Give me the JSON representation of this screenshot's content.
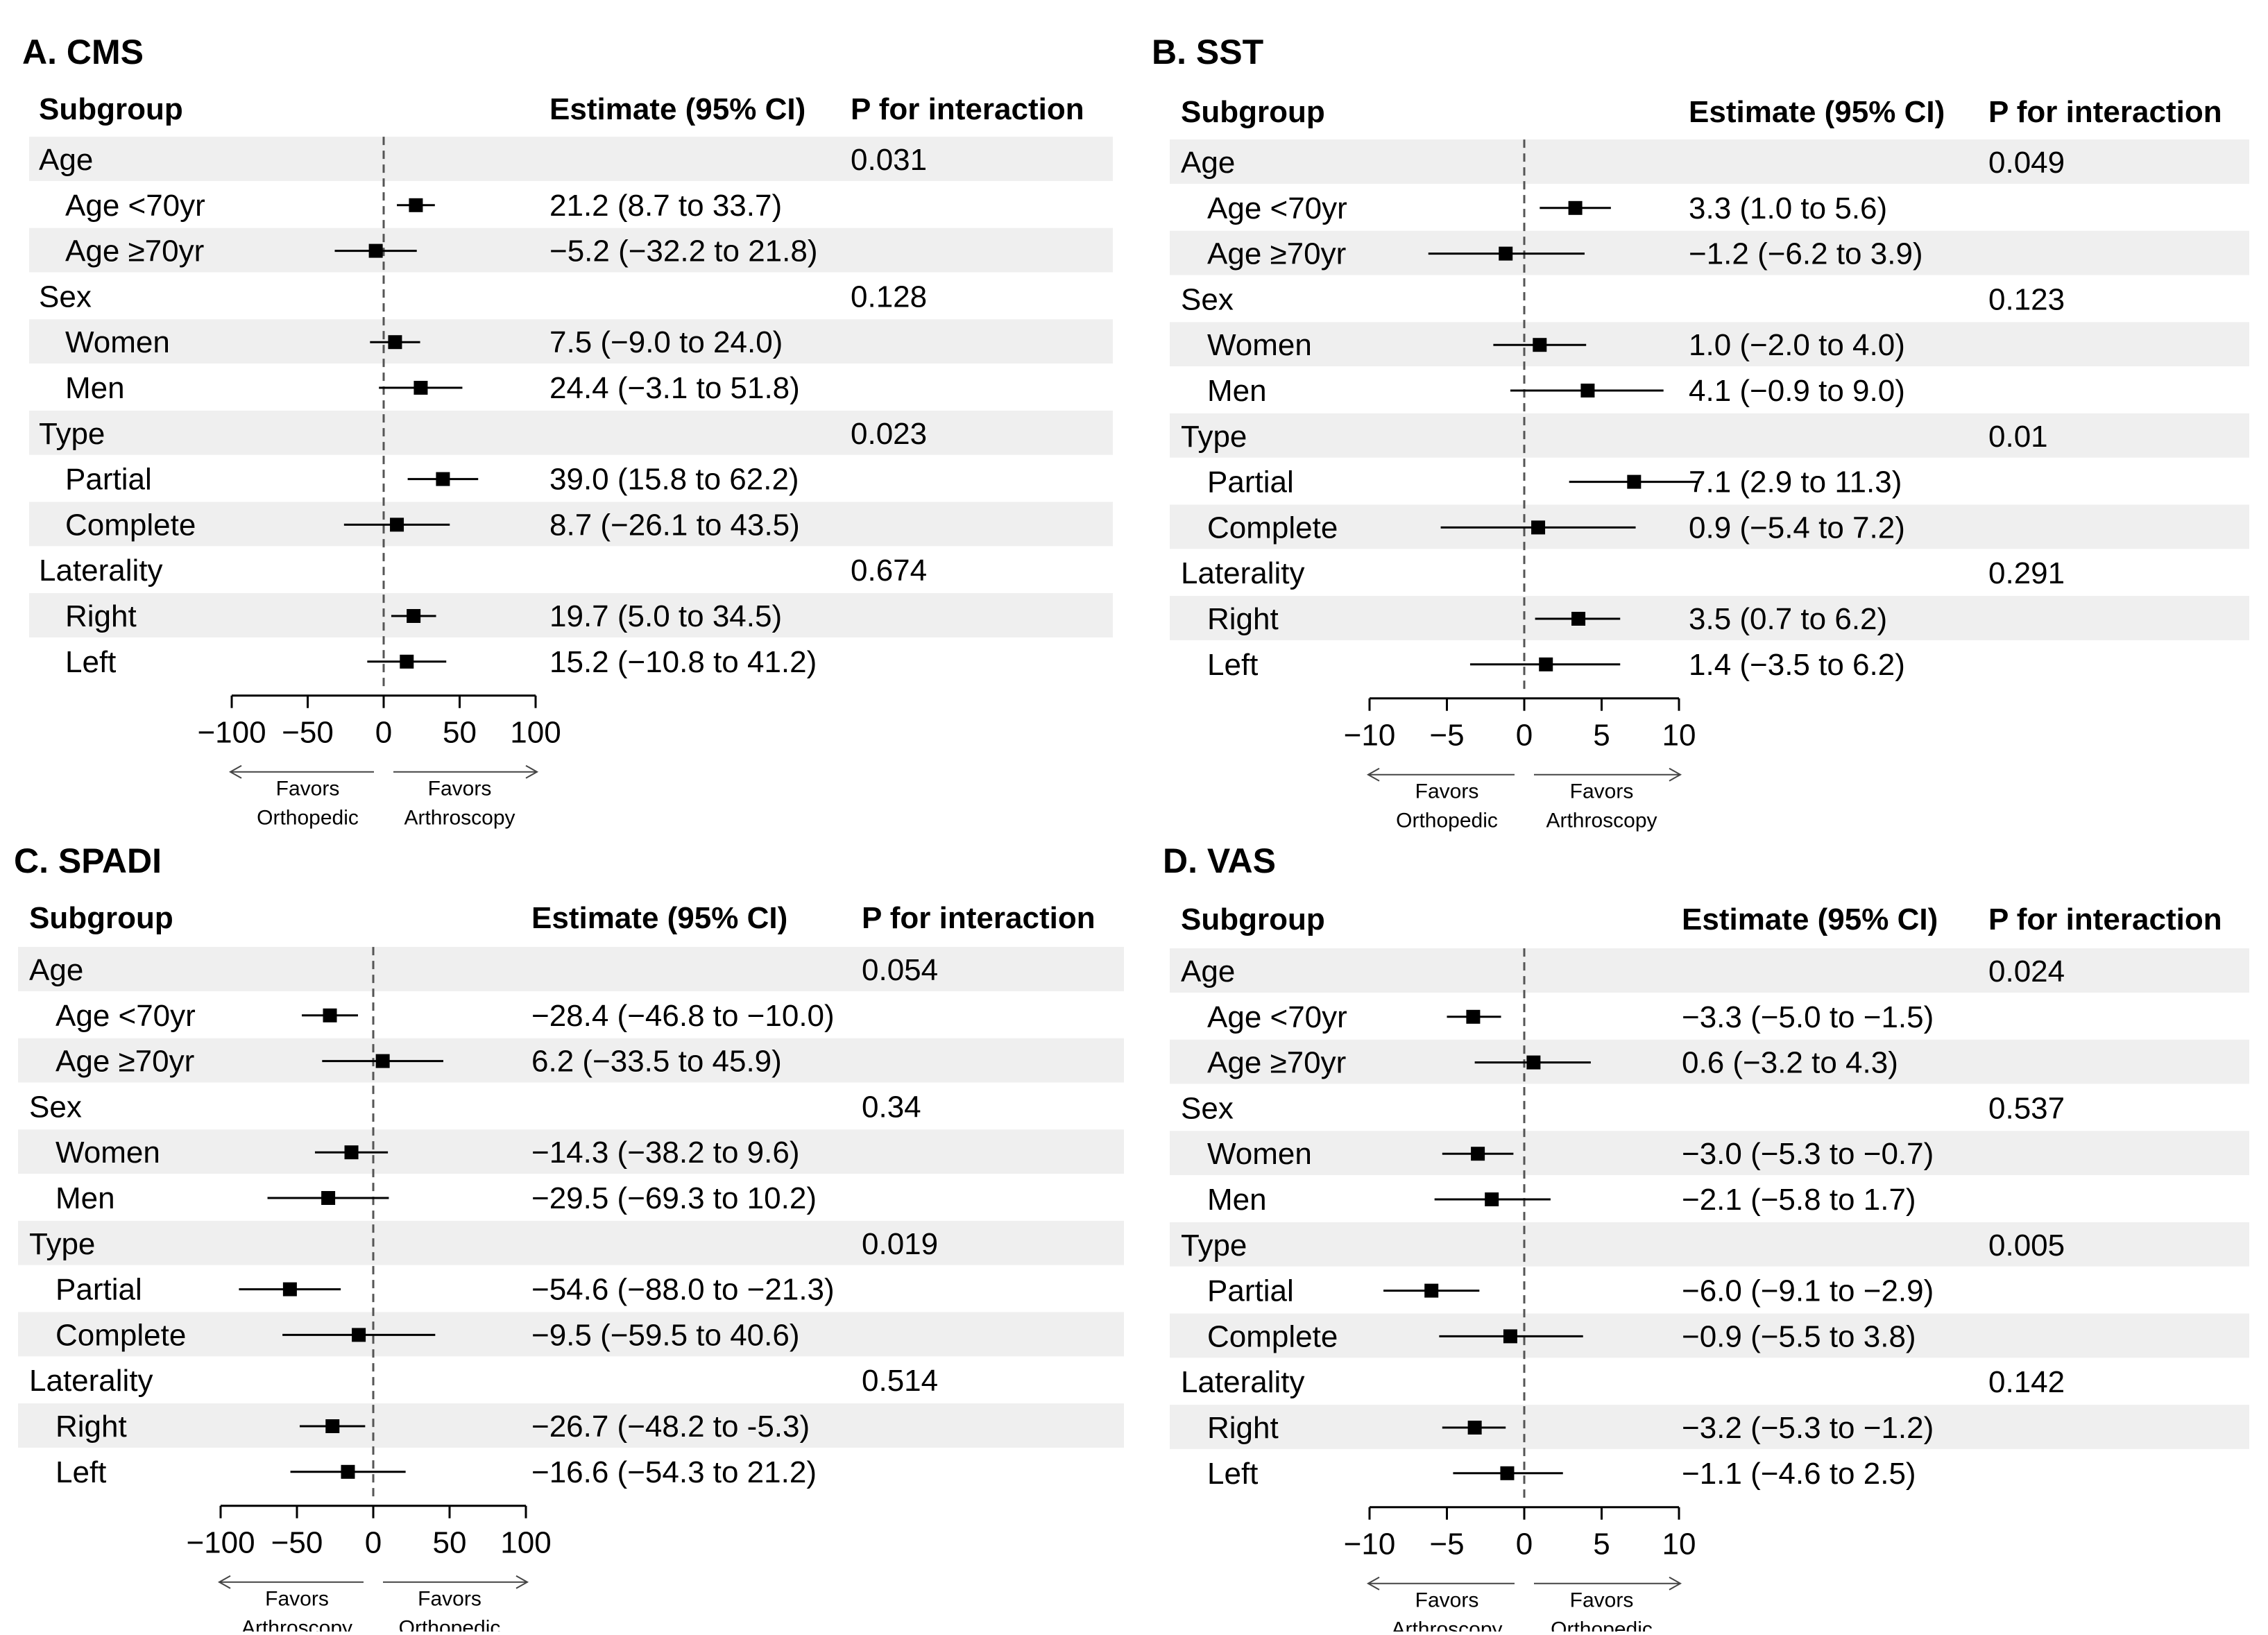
{
  "headers": {
    "subgroup": "Subgroup",
    "estimate": "Estimate (95% CI)",
    "p_interaction": "P for interaction"
  },
  "chart_data": [
    {
      "type": "forest",
      "title": "A. CMS",
      "xlim": [
        -100,
        100
      ],
      "ticks": [
        -100,
        -50,
        0,
        50,
        100
      ],
      "tick_labels": [
        "−100",
        "−50",
        "0",
        "50",
        "100"
      ],
      "favors_left": [
        "Favors",
        "Orthopedic"
      ],
      "favors_right": [
        "Favors",
        "Arthroscopy"
      ],
      "rows": [
        {
          "label": "Age",
          "group": true,
          "p": "0.031"
        },
        {
          "label": "Age <70yr",
          "est": 21.2,
          "lo": 8.7,
          "hi": 33.7,
          "text": "21.2 (8.7 to 33.7)"
        },
        {
          "label": "Age ≥70yr",
          "est": -5.2,
          "lo": -32.2,
          "hi": 21.8,
          "text": "−5.2 (−32.2 to 21.8)"
        },
        {
          "label": "Sex",
          "group": true,
          "p": "0.128"
        },
        {
          "label": "Women",
          "est": 7.5,
          "lo": -9.0,
          "hi": 24.0,
          "text": "7.5 (−9.0 to 24.0)"
        },
        {
          "label": "Men",
          "est": 24.4,
          "lo": -3.1,
          "hi": 51.8,
          "text": "24.4 (−3.1 to 51.8)"
        },
        {
          "label": "Type",
          "group": true,
          "p": "0.023"
        },
        {
          "label": "Partial",
          "est": 39.0,
          "lo": 15.8,
          "hi": 62.2,
          "text": "39.0 (15.8 to 62.2)"
        },
        {
          "label": "Complete",
          "est": 8.7,
          "lo": -26.1,
          "hi": 43.5,
          "text": "8.7 (−26.1 to 43.5)"
        },
        {
          "label": "Laterality",
          "group": true,
          "p": "0.674"
        },
        {
          "label": "Right",
          "est": 19.7,
          "lo": 5.0,
          "hi": 34.5,
          "text": "19.7 (5.0 to 34.5)"
        },
        {
          "label": "Left",
          "est": 15.2,
          "lo": -10.8,
          "hi": 41.2,
          "text": "15.2 (−10.8 to 41.2)"
        }
      ]
    },
    {
      "type": "forest",
      "title": "B. SST",
      "xlim": [
        -10,
        10
      ],
      "ticks": [
        -10,
        -5,
        0,
        5,
        10
      ],
      "tick_labels": [
        "−10",
        "−5",
        "0",
        "5",
        "10"
      ],
      "favors_left": [
        "Favors",
        "Orthopedic"
      ],
      "favors_right": [
        "Favors",
        "Arthroscopy"
      ],
      "rows": [
        {
          "label": "Age",
          "group": true,
          "p": "0.049"
        },
        {
          "label": "Age <70yr",
          "est": 3.3,
          "lo": 1.0,
          "hi": 5.6,
          "text": "3.3 (1.0 to 5.6)"
        },
        {
          "label": "Age ≥70yr",
          "est": -1.2,
          "lo": -6.2,
          "hi": 3.9,
          "text": "−1.2 (−6.2 to 3.9)"
        },
        {
          "label": "Sex",
          "group": true,
          "p": "0.123"
        },
        {
          "label": "Women",
          "est": 1.0,
          "lo": -2.0,
          "hi": 4.0,
          "text": "1.0 (−2.0 to 4.0)"
        },
        {
          "label": "Men",
          "est": 4.1,
          "lo": -0.9,
          "hi": 9.0,
          "text": "4.1 (−0.9 to 9.0)"
        },
        {
          "label": "Type",
          "group": true,
          "p": "0.01"
        },
        {
          "label": "Partial",
          "est": 7.1,
          "lo": 2.9,
          "hi": 11.3,
          "text": "7.1 (2.9 to 11.3)"
        },
        {
          "label": "Complete",
          "est": 0.9,
          "lo": -5.4,
          "hi": 7.2,
          "text": "0.9 (−5.4 to 7.2)"
        },
        {
          "label": "Laterality",
          "group": true,
          "p": "0.291"
        },
        {
          "label": "Right",
          "est": 3.5,
          "lo": 0.7,
          "hi": 6.2,
          "text": "3.5 (0.7 to 6.2)"
        },
        {
          "label": "Left",
          "est": 1.4,
          "lo": -3.5,
          "hi": 6.2,
          "text": "1.4 (−3.5 to 6.2)"
        }
      ]
    },
    {
      "type": "forest",
      "title": "C. SPADI",
      "xlim": [
        -100,
        100
      ],
      "ticks": [
        -100,
        -50,
        0,
        50,
        100
      ],
      "tick_labels": [
        "−100",
        "−50",
        "0",
        "50",
        "100"
      ],
      "favors_left": [
        "Favors",
        "Arthroscopy"
      ],
      "favors_right": [
        "Favors",
        "Orthopedic"
      ],
      "rows": [
        {
          "label": "Age",
          "group": true,
          "p": "0.054"
        },
        {
          "label": "Age <70yr",
          "est": -28.4,
          "lo": -46.8,
          "hi": -10.0,
          "text": "−28.4 (−46.8 to −10.0)"
        },
        {
          "label": "Age ≥70yr",
          "est": 6.2,
          "lo": -33.5,
          "hi": 45.9,
          "text": "6.2 (−33.5 to 45.9)"
        },
        {
          "label": "Sex",
          "group": true,
          "p": "0.34"
        },
        {
          "label": "Women",
          "est": -14.3,
          "lo": -38.2,
          "hi": 9.6,
          "text": "−14.3 (−38.2 to 9.6)"
        },
        {
          "label": "Men",
          "est": -29.5,
          "lo": -69.3,
          "hi": 10.2,
          "text": "−29.5 (−69.3 to 10.2)"
        },
        {
          "label": "Type",
          "group": true,
          "p": "0.019"
        },
        {
          "label": "Partial",
          "est": -54.6,
          "lo": -88.0,
          "hi": -21.3,
          "text": "−54.6 (−88.0 to −21.3)"
        },
        {
          "label": "Complete",
          "est": -9.5,
          "lo": -59.5,
          "hi": 40.6,
          "text": "−9.5 (−59.5 to 40.6)"
        },
        {
          "label": "Laterality",
          "group": true,
          "p": "0.514"
        },
        {
          "label": "Right",
          "est": -26.7,
          "lo": -48.2,
          "hi": -5.3,
          "text": "−26.7 (−48.2 to -5.3)"
        },
        {
          "label": "Left",
          "est": -16.6,
          "lo": -54.3,
          "hi": 21.2,
          "text": "−16.6 (−54.3 to 21.2)"
        }
      ]
    },
    {
      "type": "forest",
      "title": "D. VAS",
      "xlim": [
        -10,
        10
      ],
      "ticks": [
        -10,
        -5,
        0,
        5,
        10
      ],
      "tick_labels": [
        "−10",
        "−5",
        "0",
        "5",
        "10"
      ],
      "favors_left": [
        "Favors",
        "Arthroscopy"
      ],
      "favors_right": [
        "Favors",
        "Orthopedic"
      ],
      "rows": [
        {
          "label": "Age",
          "group": true,
          "p": "0.024"
        },
        {
          "label": "Age <70yr",
          "est": -3.3,
          "lo": -5.0,
          "hi": -1.5,
          "text": "−3.3 (−5.0 to −1.5)"
        },
        {
          "label": "Age ≥70yr",
          "est": 0.6,
          "lo": -3.2,
          "hi": 4.3,
          "text": "0.6 (−3.2 to 4.3)"
        },
        {
          "label": "Sex",
          "group": true,
          "p": "0.537"
        },
        {
          "label": "Women",
          "est": -3.0,
          "lo": -5.3,
          "hi": -0.7,
          "text": "−3.0 (−5.3 to −0.7)"
        },
        {
          "label": "Men",
          "est": -2.1,
          "lo": -5.8,
          "hi": 1.7,
          "text": "−2.1 (−5.8 to 1.7)"
        },
        {
          "label": "Type",
          "group": true,
          "p": "0.005"
        },
        {
          "label": "Partial",
          "est": -6.0,
          "lo": -9.1,
          "hi": -2.9,
          "text": "−6.0 (−9.1 to −2.9)"
        },
        {
          "label": "Complete",
          "est": -0.9,
          "lo": -5.5,
          "hi": 3.8,
          "text": "−0.9 (−5.5 to 3.8)"
        },
        {
          "label": "Laterality",
          "group": true,
          "p": "0.142"
        },
        {
          "label": "Right",
          "est": -3.2,
          "lo": -5.3,
          "hi": -1.2,
          "text": "−3.2 (−5.3 to −1.2)"
        },
        {
          "label": "Left",
          "est": -1.1,
          "lo": -4.6,
          "hi": 2.5,
          "text": "−1.1 (−4.6 to 2.5)"
        }
      ]
    }
  ]
}
